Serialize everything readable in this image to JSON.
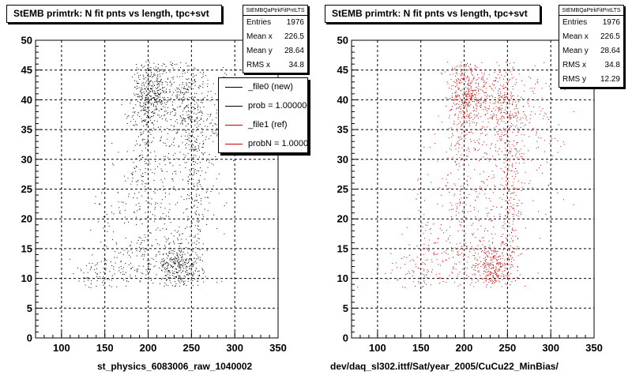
{
  "panels": [
    {
      "title": "StEMB primtrk: N fit pnts vs length, tpc+svt",
      "xlabel": "st_physics_6083006_raw_1040002",
      "stats": {
        "name": "StEMBQaPtrkFitPntLTS",
        "rows": [
          {
            "label": "Entries",
            "value": "1976"
          },
          {
            "label": "Mean x",
            "value": "226.5"
          },
          {
            "label": "Mean y",
            "value": "28.64"
          },
          {
            "label": "RMS x",
            "value": "34.8"
          }
        ]
      },
      "legend": [
        {
          "label": "_file0 (new)",
          "color": "#000000"
        },
        {
          "label": "prob = 1.000000",
          "color": "#000000"
        },
        {
          "label": "_file1 (ref)",
          "color": "#cc0000"
        },
        {
          "label": "probN = 1.000000",
          "color": "#cc0000"
        }
      ]
    },
    {
      "title": "StEMB primtrk: N fit pnts vs length, tpc+svt",
      "xlabel": "dev/daq_sl302.ittf/Sat/year_2005/CuCu22_MinBias/",
      "stats": {
        "name": "StEMBQaPtrkFitPntLTS",
        "rows": [
          {
            "label": "Entries",
            "value": "1976"
          },
          {
            "label": "Mean x",
            "value": "226.5"
          },
          {
            "label": "Mean y",
            "value": "28.64"
          },
          {
            "label": "RMS x",
            "value": "34.8"
          },
          {
            "label": "RMS y",
            "value": "12.29"
          }
        ]
      }
    }
  ],
  "chart_data": [
    {
      "type": "scatter",
      "title": "StEMB primtrk: N fit pnts vs length, tpc+svt",
      "xlabel": "st_physics_6083006_raw_1040002",
      "ylabel": "",
      "xlim": [
        70,
        350
      ],
      "ylim": [
        0,
        50
      ],
      "xticks": [
        100,
        150,
        200,
        250,
        300,
        350
      ],
      "yticks": [
        0,
        5,
        10,
        15,
        20,
        25,
        30,
        35,
        40,
        45,
        50
      ],
      "grid": true,
      "marker_color": "#000000",
      "entries": 1976,
      "mean_x": 226.5,
      "mean_y": 28.64,
      "rms_x": 34.8,
      "rms_y": 12.29,
      "clusters": [
        {
          "x": 205,
          "y": 41,
          "sx": 12,
          "sy": 3,
          "n": 420
        },
        {
          "x": 243,
          "y": 39,
          "sx": 10,
          "sy": 4,
          "n": 200
        },
        {
          "x": 235,
          "y": 12,
          "sx": 12,
          "sy": 2.2,
          "n": 330
        },
        {
          "x": 190,
          "y": 13,
          "sx": 25,
          "sy": 3,
          "n": 110
        },
        {
          "x": 225,
          "y": 26,
          "sx": 30,
          "sy": 8,
          "n": 280
        },
        {
          "x": 255,
          "y": 25,
          "sx": 6,
          "sy": 10,
          "n": 200
        },
        {
          "x": 270,
          "y": 38,
          "sx": 20,
          "sy": 5,
          "n": 150
        },
        {
          "x": 140,
          "y": 11,
          "sx": 18,
          "sy": 2,
          "n": 70
        },
        {
          "x": 160,
          "y": 20,
          "sx": 12,
          "sy": 6,
          "n": 50
        },
        {
          "x": 195,
          "y": 30,
          "sx": 8,
          "sy": 10,
          "n": 146
        }
      ]
    },
    {
      "type": "scatter",
      "title": "StEMB primtrk: N fit pnts vs length, tpc+svt",
      "xlabel": "dev/daq_sl302.ittf/Sat/year_2005/CuCu22_MinBias/",
      "ylabel": "",
      "xlim": [
        70,
        350
      ],
      "ylim": [
        0,
        50
      ],
      "xticks": [
        100,
        150,
        200,
        250,
        300,
        350
      ],
      "yticks": [
        0,
        5,
        10,
        15,
        20,
        25,
        30,
        35,
        40,
        45,
        50
      ],
      "grid": true,
      "marker_color": "#cc0000",
      "entries": 1976,
      "mean_x": 226.5,
      "mean_y": 28.64,
      "rms_x": 34.8,
      "rms_y": 12.29,
      "clusters": [
        {
          "x": 205,
          "y": 41,
          "sx": 12,
          "sy": 3,
          "n": 420
        },
        {
          "x": 243,
          "y": 39,
          "sx": 10,
          "sy": 4,
          "n": 200
        },
        {
          "x": 235,
          "y": 12,
          "sx": 12,
          "sy": 2.2,
          "n": 330
        },
        {
          "x": 190,
          "y": 13,
          "sx": 25,
          "sy": 3,
          "n": 110
        },
        {
          "x": 225,
          "y": 26,
          "sx": 30,
          "sy": 8,
          "n": 280
        },
        {
          "x": 255,
          "y": 25,
          "sx": 6,
          "sy": 10,
          "n": 200
        },
        {
          "x": 270,
          "y": 38,
          "sx": 20,
          "sy": 5,
          "n": 150
        },
        {
          "x": 140,
          "y": 11,
          "sx": 18,
          "sy": 2,
          "n": 70
        },
        {
          "x": 160,
          "y": 20,
          "sx": 12,
          "sy": 6,
          "n": 50
        },
        {
          "x": 195,
          "y": 30,
          "sx": 8,
          "sy": 10,
          "n": 146
        }
      ]
    }
  ]
}
